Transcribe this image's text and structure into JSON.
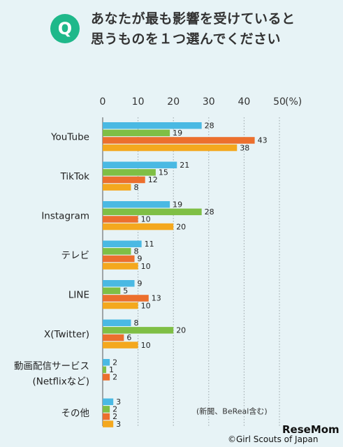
{
  "question": {
    "badge": "Q",
    "line1": "あなたが最も影響を受けていると",
    "line2": "思うものを１つ選んでください"
  },
  "chart_data": {
    "type": "bar",
    "orientation": "horizontal",
    "x_ticks": [
      "0",
      "10",
      "20",
      "30",
      "40",
      "50"
    ],
    "x_unit": "(%)",
    "xlim": [
      0,
      50
    ],
    "categories": [
      [
        "YouTube"
      ],
      [
        "TikTok"
      ],
      [
        "Instagram"
      ],
      [
        "テレビ"
      ],
      [
        "LINE"
      ],
      [
        "X(Twitter)"
      ],
      [
        "動画配信サービス",
        "(Netflixなど)"
      ],
      [
        "その他"
      ]
    ],
    "series": [
      {
        "color": "#4ab9e3",
        "values": [
          28,
          21,
          19,
          11,
          9,
          8,
          2,
          3
        ]
      },
      {
        "color": "#7fbf45",
        "values": [
          19,
          15,
          28,
          8,
          5,
          20,
          1,
          2
        ]
      },
      {
        "color": "#ec6f2d",
        "values": [
          43,
          12,
          10,
          9,
          13,
          6,
          2,
          2
        ]
      },
      {
        "color": "#f4a81e",
        "values": [
          38,
          8,
          20,
          10,
          10,
          10,
          null,
          3
        ]
      }
    ],
    "annotation": "(新聞、BeReal含む)"
  },
  "footer": {
    "brand": "ReseMom",
    "credit": "©Girl Scouts of Japan"
  }
}
